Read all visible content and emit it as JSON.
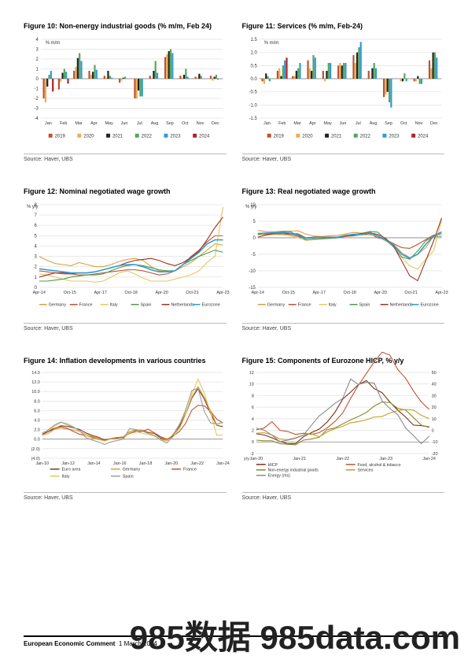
{
  "colors": {
    "y2019": "#c05131",
    "y2020": "#e8b050",
    "y2021": "#222222",
    "y2022": "#5aa45a",
    "y2023": "#2f9bd6",
    "y2024": "#b22222",
    "germany": "#d9a03d",
    "france": "#c05131",
    "italy": "#e3c85e",
    "spain": "#4a9a4a",
    "netherlands": "#a03020",
    "eurozone": "#2f9bd6",
    "euroarea": "#6b3d2a",
    "spain_gray": "#9a9a9a",
    "hicp": "#7a2c1a",
    "food": "#c05131",
    "neig": "#8a8a2a",
    "services": "#c0a020",
    "energy": "#8a8a8a",
    "grid": "#dcdcdc",
    "axis": "#888888",
    "zero": "#888888"
  },
  "fig10": {
    "title": "Figure 10: Non-energy industrial goods (% m/m, Feb 24)",
    "axis_label": "% m/m",
    "source": "Source: Haver, UBS",
    "months": [
      "Jan",
      "Feb",
      "Mar",
      "Apr",
      "May",
      "Jun",
      "Jul",
      "Aug",
      "Sep",
      "Oct",
      "Nov",
      "Dec"
    ],
    "ylim": [
      -4,
      4
    ],
    "ytick_step": 1,
    "legend": [
      "2019",
      "2020",
      "2021",
      "2022",
      "2023",
      "2024"
    ],
    "series": {
      "2019": [
        -2.0,
        -1.1,
        0.8,
        0.8,
        0.3,
        -0.4,
        -2.0,
        0.3,
        2.2,
        0.3,
        0.2,
        0.3
      ],
      "2020": [
        -2.4,
        -0.3,
        1.2,
        0.4,
        0.1,
        -0.2,
        -2.0,
        0.0,
        2.5,
        0.1,
        0.1,
        -0.2
      ],
      "2021": [
        -0.8,
        0.6,
        2.1,
        0.7,
        0.8,
        0.1,
        -1.2,
        0.8,
        2.8,
        0.4,
        0.5,
        0.2
      ],
      "2022": [
        0.4,
        1.0,
        2.6,
        1.4,
        0.3,
        0.2,
        -1.8,
        1.8,
        3.0,
        1.0,
        0.3,
        0.4
      ],
      "2023": [
        0.8,
        0.7,
        1.8,
        0.9,
        0.1,
        0.0,
        -1.8,
        0.6,
        2.6,
        0.2,
        0.0,
        -0.1
      ],
      "2024": [
        -1.3,
        -0.5,
        null,
        null,
        null,
        null,
        null,
        null,
        null,
        null,
        null,
        null
      ]
    }
  },
  "fig11": {
    "title": "Figure 11: Services (% m/m, Feb-24)",
    "axis_label": "% m/m",
    "source": "Source: Haver, UBS",
    "months": [
      "Jan",
      "Feb",
      "Mar",
      "Apr",
      "May",
      "Jun",
      "Jul",
      "Aug",
      "Sep",
      "Oct",
      "Nov",
      "Dec"
    ],
    "ylim": [
      -1.5,
      1.5
    ],
    "ytick_step": 0.5,
    "legend": [
      "2019",
      "2020",
      "2021",
      "2022",
      "2023",
      "2024"
    ],
    "series": {
      "2019": [
        -0.1,
        0.3,
        0.1,
        0.7,
        0.3,
        0.5,
        0.9,
        0.3,
        -0.7,
        0.0,
        -0.1,
        0.7
      ],
      "2020": [
        -0.2,
        0.4,
        0.1,
        0.4,
        -0.1,
        0.6,
        0.6,
        0.0,
        -0.6,
        -0.1,
        -0.1,
        0.4
      ],
      "2021": [
        0.2,
        0.1,
        0.3,
        0.3,
        0.3,
        0.5,
        1.0,
        0.4,
        -0.5,
        -0.1,
        0.1,
        1.0
      ],
      "2022": [
        0.1,
        0.5,
        0.4,
        0.9,
        0.6,
        0.6,
        1.2,
        0.6,
        -0.9,
        0.2,
        -0.2,
        1.0
      ],
      "2023": [
        -0.1,
        0.7,
        0.6,
        0.8,
        0.6,
        0.6,
        1.4,
        0.4,
        -1.1,
        -0.1,
        -0.2,
        0.8
      ],
      "2024": [
        0.0,
        0.8,
        null,
        null,
        null,
        null,
        null,
        null,
        null,
        null,
        null,
        null
      ]
    }
  },
  "fig12": {
    "title": "Figure 12: Nominal negotiated wage growth",
    "axis_label": "% y/y",
    "source": "Source: Haver, UBS",
    "xticks": [
      "Apr-14",
      "Oct-15",
      "Apr-17",
      "Oct-18",
      "Apr-20",
      "Oct-21",
      "Apr-23"
    ],
    "ylim": [
      0,
      8
    ],
    "ytick_step": 1,
    "legend": [
      "Germany",
      "France",
      "Italy",
      "Spain",
      "Netherlands",
      "Eurozone"
    ],
    "series": {
      "Germany": [
        3.0,
        2.6,
        2.3,
        2.2,
        2.1,
        2.4,
        2.2,
        2.0,
        2.0,
        2.2,
        2.5,
        2.7,
        2.8,
        2.6,
        2.0,
        1.6,
        1.5,
        1.6,
        2.0,
        2.4,
        3.0,
        3.6,
        4.2,
        4.1
      ],
      "France": [
        1.6,
        1.5,
        1.4,
        1.3,
        1.3,
        1.2,
        1.2,
        1.3,
        1.4,
        1.5,
        1.6,
        1.7,
        1.7,
        1.6,
        1.4,
        1.2,
        1.3,
        1.6,
        2.2,
        3.0,
        3.6,
        4.4,
        5.0,
        5.0
      ],
      "Italy": [
        1.3,
        1.2,
        1.0,
        0.8,
        0.6,
        0.6,
        0.6,
        0.5,
        0.6,
        1.0,
        1.4,
        1.6,
        1.3,
        0.9,
        0.6,
        0.6,
        0.6,
        0.8,
        1.0,
        1.2,
        1.6,
        2.4,
        3.0,
        7.8
      ],
      "Spain": [
        0.6,
        0.6,
        0.7,
        0.8,
        1.0,
        1.1,
        1.2,
        1.2,
        1.3,
        1.6,
        1.9,
        2.1,
        2.2,
        2.1,
        1.9,
        1.7,
        1.6,
        1.6,
        2.2,
        2.6,
        3.0,
        3.3,
        3.6,
        3.4
      ],
      "Netherlands": [
        1.0,
        1.2,
        1.4,
        1.4,
        1.3,
        1.4,
        1.4,
        1.5,
        1.7,
        1.9,
        2.1,
        2.4,
        2.6,
        2.7,
        2.8,
        2.6,
        2.3,
        2.1,
        2.4,
        2.9,
        3.5,
        4.6,
        5.8,
        6.8
      ],
      "Eurozone": [
        1.8,
        1.7,
        1.6,
        1.5,
        1.4,
        1.4,
        1.4,
        1.5,
        1.7,
        1.9,
        2.1,
        2.2,
        2.2,
        2.0,
        1.7,
        1.5,
        1.5,
        1.6,
        2.2,
        2.8,
        3.4,
        4.2,
        4.6,
        4.6
      ]
    }
  },
  "fig13": {
    "title": "Figure 13: Real negotiated wage growth",
    "axis_label": "% y/y",
    "source": "Source: Haver, UBS",
    "xticks": [
      "Apr-14",
      "Oct-15",
      "Apr-17",
      "Oct-18",
      "Apr-20",
      "Oct-21",
      "Apr-23"
    ],
    "ylim": [
      -15,
      10
    ],
    "ytick_step": 5,
    "legend": [
      "Germany",
      "France",
      "Italy",
      "Spain",
      "Netherlands",
      "Eurozone"
    ],
    "series": {
      "Germany": [
        2.2,
        1.9,
        1.8,
        2.0,
        2.0,
        2.1,
        1.1,
        0.5,
        0.4,
        0.6,
        0.7,
        1.2,
        1.6,
        1.4,
        1.8,
        0.4,
        -1.0,
        -2.0,
        -4.5,
        -6.0,
        -5.0,
        -3.0,
        0.5,
        1.3
      ],
      "France": [
        1.0,
        1.1,
        1.2,
        1.2,
        1.0,
        0.4,
        -0.2,
        0.1,
        0.2,
        -0.2,
        0.0,
        0.4,
        0.6,
        0.9,
        1.2,
        0.0,
        -0.6,
        -1.8,
        -3.0,
        -3.2,
        -2.0,
        -0.6,
        0.8,
        1.2
      ],
      "Italy": [
        1.0,
        0.9,
        1.0,
        0.9,
        0.6,
        0.0,
        -0.8,
        -0.6,
        -0.4,
        -0.2,
        0.2,
        0.9,
        0.9,
        0.8,
        0.8,
        0.6,
        -1.0,
        -2.6,
        -6.0,
        -8.5,
        -9.5,
        -6.5,
        -4.0,
        5.5
      ],
      "Spain": [
        0.9,
        1.4,
        1.5,
        1.8,
        1.9,
        0.7,
        -0.6,
        -0.4,
        -0.3,
        -0.2,
        0.0,
        0.7,
        1.1,
        1.2,
        1.9,
        1.7,
        -0.6,
        -2.8,
        -5.8,
        -6.5,
        -4.0,
        -1.0,
        0.5,
        0.4
      ],
      "Netherlands": [
        0.2,
        0.8,
        1.2,
        1.2,
        1.2,
        1.2,
        0.0,
        0.2,
        0.2,
        0.2,
        0.2,
        0.6,
        0.8,
        1.3,
        1.5,
        1.0,
        -0.2,
        -2.6,
        -7.0,
        -11.5,
        -13.0,
        -7.0,
        -1.0,
        6.0
      ],
      "Eurozone": [
        1.3,
        1.4,
        1.5,
        1.6,
        1.4,
        0.8,
        -0.1,
        0.0,
        0.1,
        0.0,
        0.2,
        0.7,
        1.0,
        1.0,
        1.5,
        0.5,
        -0.7,
        -2.3,
        -5.0,
        -6.2,
        -5.0,
        -2.0,
        0.5,
        1.8
      ]
    }
  },
  "fig14": {
    "title": "Figure 14: Inflation developments in various countries",
    "source": "Source: Haver, UBS",
    "xticks": [
      "Jan-10",
      "Jan-12",
      "Jan-14",
      "Jan-16",
      "Jan-18",
      "Jan-20",
      "Jan-22",
      "Jan-24"
    ],
    "ylim": [
      -4,
      14
    ],
    "ytick_step": 2,
    "legend": [
      "Euro area",
      "Germany",
      "France",
      "Italy",
      "Spain"
    ],
    "series": {
      "Euro area": [
        1.0,
        1.6,
        2.2,
        2.8,
        2.7,
        2.4,
        2.0,
        1.3,
        0.8,
        0.4,
        -0.2,
        0.1,
        0.2,
        0.4,
        1.3,
        1.8,
        1.8,
        1.4,
        1.2,
        0.2,
        -0.3,
        0.8,
        2.6,
        5.2,
        8.6,
        10.6,
        8.4,
        5.4,
        2.9,
        2.6
      ],
      "Germany": [
        0.8,
        1.2,
        2.1,
        2.3,
        2.1,
        1.9,
        1.6,
        1.0,
        0.6,
        0.2,
        -0.3,
        0.1,
        0.3,
        0.5,
        1.6,
        1.9,
        1.9,
        1.5,
        1.3,
        0.5,
        -0.3,
        1.0,
        3.1,
        5.5,
        8.8,
        11.0,
        8.8,
        6.0,
        3.0,
        2.7
      ],
      "France": [
        1.2,
        1.8,
        2.3,
        2.6,
        2.3,
        1.6,
        1.0,
        0.7,
        0.4,
        0.0,
        -0.3,
        0.1,
        0.3,
        0.3,
        1.2,
        1.5,
        1.6,
        2.1,
        1.3,
        0.5,
        0.0,
        0.6,
        1.6,
        3.3,
        6.1,
        7.1,
        7.0,
        5.8,
        4.2,
        3.4
      ],
      "Italy": [
        1.4,
        1.8,
        2.7,
        3.5,
        3.3,
        2.6,
        1.6,
        0.7,
        0.2,
        -0.1,
        -0.4,
        0.0,
        0.0,
        0.1,
        1.4,
        1.6,
        1.2,
        1.0,
        0.6,
        -0.1,
        -0.4,
        0.5,
        2.1,
        5.1,
        9.4,
        12.6,
        9.7,
        5.6,
        0.8,
        0.9
      ],
      "Spain": [
        1.1,
        2.0,
        3.0,
        3.6,
        3.0,
        2.5,
        1.8,
        0.3,
        -0.2,
        -0.6,
        -1.1,
        -0.6,
        -0.3,
        0.0,
        2.2,
        2.0,
        1.7,
        1.2,
        0.8,
        -0.2,
        -0.8,
        0.6,
        3.0,
        6.1,
        10.2,
        10.7,
        5.8,
        3.4,
        3.2,
        3.5
      ]
    }
  },
  "fig15": {
    "title": "Figure 15: Components of Eurozone HICP, % y/y",
    "source": "Source: Haver, UBS",
    "xticks": [
      "Jan-20",
      "Jan-21",
      "Jan-22",
      "Jan-23",
      "Jan-24"
    ],
    "ylabel": "y/y",
    "ylim_left": [
      -2,
      12
    ],
    "ytick_step_left": 2,
    "ylim_right": [
      -20,
      50
    ],
    "ytick_step_right": 10,
    "legend": [
      "HICP",
      "Food, alcohol & tobacco",
      "Non-energy industrial goods",
      "Services",
      "Energy (rhs)"
    ],
    "series_left": {
      "HICP": [
        1.4,
        1.2,
        0.7,
        0.1,
        -0.3,
        -0.3,
        0.9,
        1.6,
        2.2,
        3.4,
        5.1,
        7.4,
        8.6,
        9.9,
        10.6,
        9.2,
        8.5,
        6.9,
        5.5,
        4.3,
        2.9,
        2.8,
        2.6
      ],
      "Food": [
        2.1,
        2.4,
        3.5,
        2.0,
        1.8,
        1.3,
        1.5,
        1.3,
        1.6,
        2.4,
        3.5,
        5.0,
        7.5,
        9.8,
        11.8,
        13.8,
        15.5,
        15.0,
        12.5,
        11.0,
        8.8,
        6.9,
        5.6
      ],
      "NEIG": [
        0.3,
        0.2,
        0.2,
        -0.3,
        -0.4,
        -0.5,
        0.3,
        0.5,
        0.8,
        2.1,
        2.4,
        3.1,
        3.8,
        4.4,
        5.1,
        6.2,
        6.9,
        6.8,
        5.8,
        5.5,
        4.2,
        2.9,
        2.5
      ],
      "Services": [
        1.5,
        1.6,
        1.2,
        0.5,
        0.4,
        0.7,
        1.2,
        1.4,
        0.9,
        1.7,
        2.3,
        2.7,
        3.3,
        3.5,
        3.8,
        4.3,
        4.4,
        5.0,
        5.4,
        5.6,
        5.5,
        4.6,
        4.0
      ]
    },
    "series_right": {
      "Energy": [
        1.9,
        0.2,
        -4.2,
        -9.8,
        -8.4,
        -6.9,
        -4.2,
        4.3,
        12.4,
        17.6,
        23.3,
        27.5,
        44.3,
        39.6,
        41.5,
        40.8,
        25.5,
        18.9,
        13.6,
        2.0,
        -4.6,
        -11.5,
        -5.0
      ]
    }
  },
  "footer": {
    "title": "European Economic Comment",
    "date": "1 March 2024"
  },
  "watermark": "985数据 985data.com"
}
